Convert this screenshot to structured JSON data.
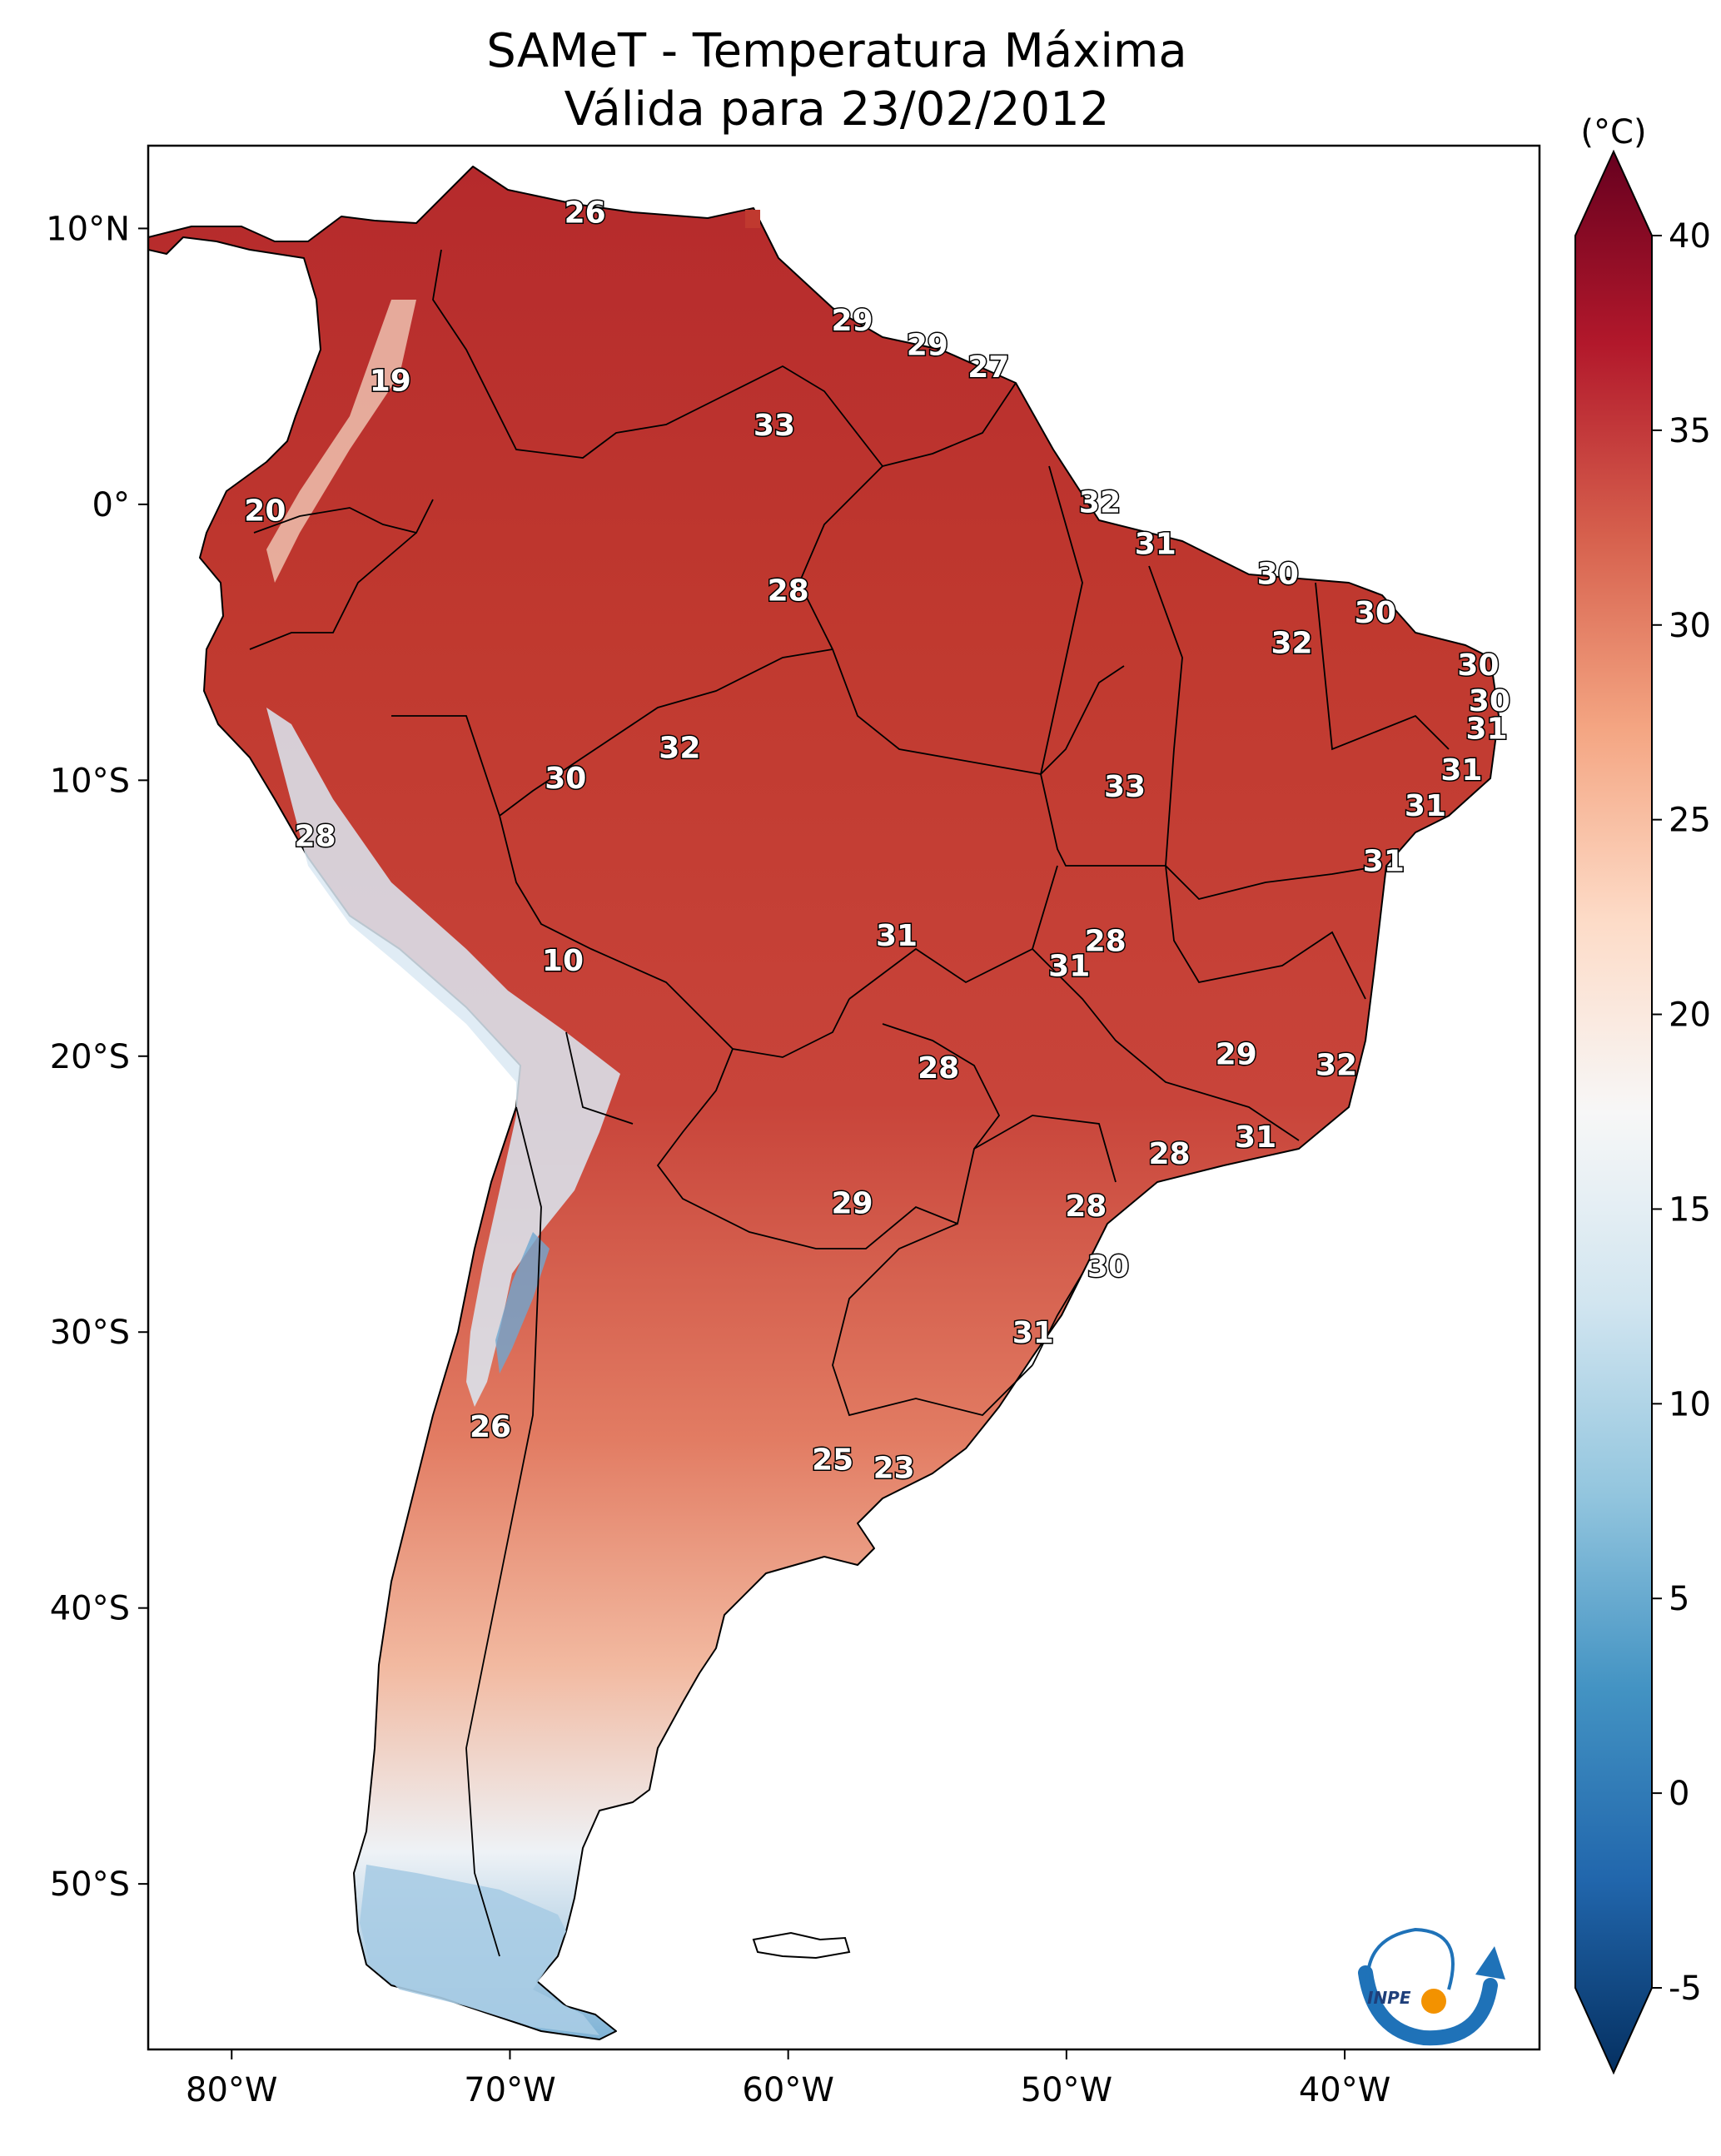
{
  "title": {
    "line1": "SAMeT - Temperatura Máxima",
    "line2": "Válida para 23/02/2012"
  },
  "map": {
    "lon_range": [
      -83,
      -33
    ],
    "lat_range": [
      -56,
      13
    ],
    "lon_ticks": [
      {
        "value": -80,
        "label": "80°W"
      },
      {
        "value": -70,
        "label": "70°W"
      },
      {
        "value": -60,
        "label": "60°W"
      },
      {
        "value": -50,
        "label": "50°W"
      },
      {
        "value": -40,
        "label": "40°W"
      }
    ],
    "lat_ticks": [
      {
        "value": 10,
        "label": "10°N"
      },
      {
        "value": 0,
        "label": "0°"
      },
      {
        "value": -10,
        "label": "10°S"
      },
      {
        "value": -20,
        "label": "20°S"
      },
      {
        "value": -30,
        "label": "30°S"
      },
      {
        "value": -40,
        "label": "40°S"
      },
      {
        "value": -50,
        "label": "50°S"
      }
    ],
    "station_values": [
      {
        "lon": -67.3,
        "lat": 10.6,
        "label": "26"
      },
      {
        "lon": -57.7,
        "lat": 6.7,
        "label": "29"
      },
      {
        "lon": -55.0,
        "lat": 5.8,
        "label": "29"
      },
      {
        "lon": -52.8,
        "lat": 5.0,
        "label": "27"
      },
      {
        "lon": -60.5,
        "lat": 2.9,
        "label": "33"
      },
      {
        "lon": -74.3,
        "lat": 4.5,
        "label": "19"
      },
      {
        "lon": -48.8,
        "lat": 0.1,
        "label": "32"
      },
      {
        "lon": -78.8,
        "lat": -0.2,
        "label": "20"
      },
      {
        "lon": -46.8,
        "lat": -1.4,
        "label": "31"
      },
      {
        "lon": -60.0,
        "lat": -3.1,
        "label": "28"
      },
      {
        "lon": -42.4,
        "lat": -2.5,
        "label": "30"
      },
      {
        "lon": -38.9,
        "lat": -3.9,
        "label": "30"
      },
      {
        "lon": -41.9,
        "lat": -5.0,
        "label": "32"
      },
      {
        "lon": -35.2,
        "lat": -5.8,
        "label": "30"
      },
      {
        "lon": -34.8,
        "lat": -7.1,
        "label": "30"
      },
      {
        "lon": -34.9,
        "lat": -8.1,
        "label": "31"
      },
      {
        "lon": -63.9,
        "lat": -8.8,
        "label": "32"
      },
      {
        "lon": -68.0,
        "lat": -9.9,
        "label": "30"
      },
      {
        "lon": -47.9,
        "lat": -10.2,
        "label": "33"
      },
      {
        "lon": -35.8,
        "lat": -9.6,
        "label": "31"
      },
      {
        "lon": -37.1,
        "lat": -10.9,
        "label": "31"
      },
      {
        "lon": -38.6,
        "lat": -12.9,
        "label": "31"
      },
      {
        "lon": -77.0,
        "lat": -12.0,
        "label": "28"
      },
      {
        "lon": -56.1,
        "lat": -15.6,
        "label": "31"
      },
      {
        "lon": -48.6,
        "lat": -15.8,
        "label": "28"
      },
      {
        "lon": -49.9,
        "lat": -16.7,
        "label": "31"
      },
      {
        "lon": -68.1,
        "lat": -16.5,
        "label": "10"
      },
      {
        "lon": -54.6,
        "lat": -20.4,
        "label": "28"
      },
      {
        "lon": -43.9,
        "lat": -19.9,
        "label": "29"
      },
      {
        "lon": -40.3,
        "lat": -20.3,
        "label": "32"
      },
      {
        "lon": -46.3,
        "lat": -23.5,
        "label": "28"
      },
      {
        "lon": -43.2,
        "lat": -22.9,
        "label": "31"
      },
      {
        "lon": -57.7,
        "lat": -25.3,
        "label": "29"
      },
      {
        "lon": -49.3,
        "lat": -25.4,
        "label": "28"
      },
      {
        "lon": -48.5,
        "lat": -27.6,
        "label": "30"
      },
      {
        "lon": -51.2,
        "lat": -30.0,
        "label": "31"
      },
      {
        "lon": -70.7,
        "lat": -33.4,
        "label": "26"
      },
      {
        "lon": -58.4,
        "lat": -34.6,
        "label": "25"
      },
      {
        "lon": -56.2,
        "lat": -34.9,
        "label": "23"
      }
    ]
  },
  "colorbar": {
    "unit_label": "(°C)",
    "min": -5,
    "max": 40,
    "ticks": [
      -5,
      0,
      5,
      10,
      15,
      20,
      25,
      30,
      35,
      40
    ],
    "colors": [
      "#053061",
      "#2166ac",
      "#4393c3",
      "#92c5de",
      "#d1e5f0",
      "#f7f7f7",
      "#fddbc7",
      "#f4a582",
      "#d6604d",
      "#b2182b",
      "#67001f"
    ]
  },
  "logo": {
    "text": "INPE",
    "colors": {
      "swoosh": "#1f72b8",
      "dot": "#f39200"
    }
  }
}
